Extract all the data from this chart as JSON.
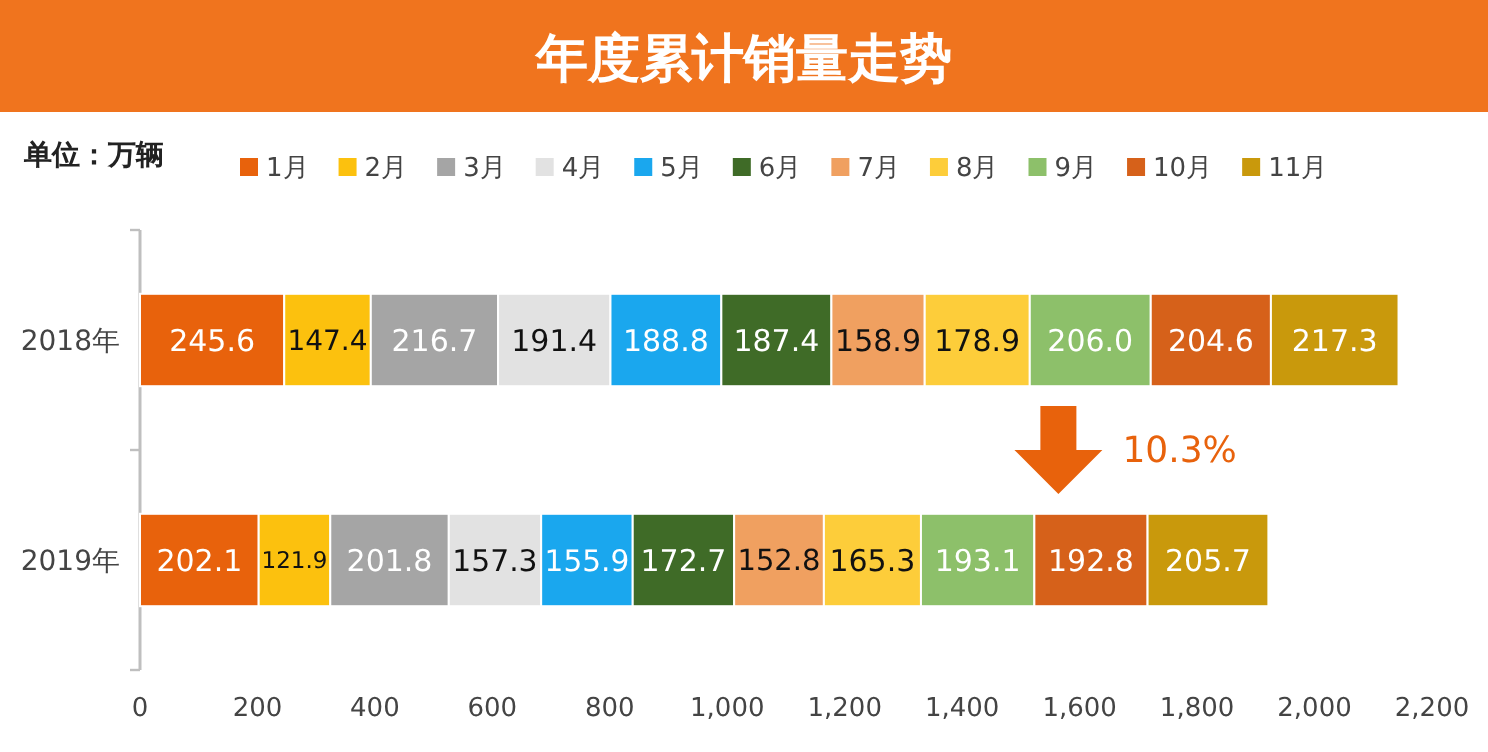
{
  "chart_data": {
    "type": "bar",
    "orientation": "horizontal",
    "stacked": true,
    "data_labels": true,
    "legend": "top",
    "grid": false,
    "title": "年度累计销量走势",
    "annotations": [
      "单位：万辆",
      "10.3%"
    ],
    "categories": [
      "2018年",
      "2019年"
    ],
    "xlim": [
      0,
      2200
    ],
    "xticks": [
      0,
      200,
      400,
      600,
      800,
      {
        "value": 1000,
        "label": "1,000"
      },
      {
        "value": 1200,
        "label": "1,200"
      },
      {
        "value": 1400,
        "label": "1,400"
      },
      {
        "value": 1600,
        "label": "1,600"
      },
      {
        "value": 1800,
        "label": "1,800"
      },
      {
        "value": 2000,
        "label": "2,000"
      },
      {
        "value": 2200,
        "label": "2,200"
      }
    ],
    "series": [
      {
        "name": "1月",
        "color": "#e8620c",
        "values": [
          245.6,
          202.1
        ]
      },
      {
        "name": "2月",
        "color": "#fcc10e",
        "values": [
          147.4,
          121.9
        ]
      },
      {
        "name": "3月",
        "color": "#a5a5a5",
        "values": [
          216.7,
          201.8
        ]
      },
      {
        "name": "4月",
        "color": "#e2e2e2",
        "values": [
          191.4,
          157.3
        ]
      },
      {
        "name": "5月",
        "color": "#1aa7ee",
        "values": [
          188.8,
          155.9
        ]
      },
      {
        "name": "6月",
        "color": "#3f6b27",
        "values": [
          187.4,
          172.7
        ]
      },
      {
        "name": "7月",
        "color": "#f0a060",
        "values": [
          158.9,
          152.8
        ]
      },
      {
        "name": "8月",
        "color": "#fdcd3a",
        "values": [
          178.9,
          165.3
        ]
      },
      {
        "name": "9月",
        "color": "#8dc06a",
        "values": [
          206.0,
          193.1
        ],
        "value_labels": [
          "206.0",
          "193.1"
        ]
      },
      {
        "name": "10月",
        "color": "#d6611a",
        "values": [
          204.6,
          192.8
        ]
      },
      {
        "name": "11月",
        "color": "#c9990c",
        "values": [
          217.3,
          205.7
        ]
      }
    ]
  }
}
